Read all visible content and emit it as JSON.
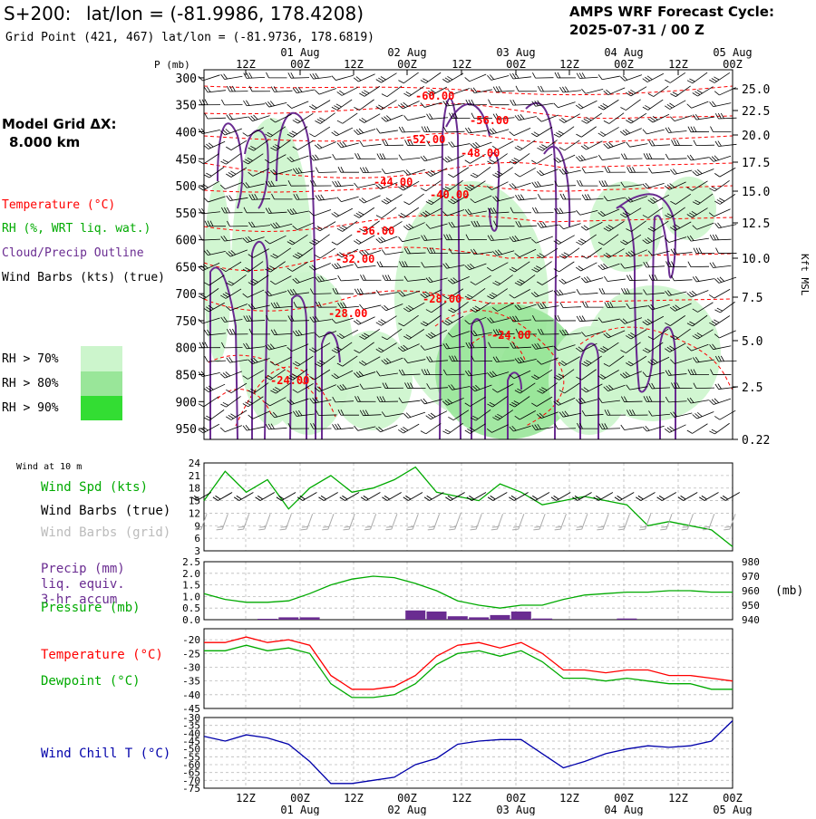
{
  "header": {
    "station": "S+200:",
    "station_coords": "lat/lon = (-81.9986, 178.4208)",
    "grid_point": "Grid Point (421, 467) lat/lon = (-81.9736, 178.6819)",
    "model_title": "AMPS WRF Forecast Cycle:",
    "cycle": "2025-07-31 / 00  Z"
  },
  "left_panel": {
    "grid_label": "Model Grid ΔX:",
    "grid_value": "8.000 km",
    "temperature_label": "Temperature (°C)",
    "rh_label": "RH (%, WRT liq. wat.)",
    "cloud_label": "Cloud/Precip Outline",
    "barb_label": "Wind Barbs (kts) (true)",
    "rh70": "RH > 70%",
    "rh80": "RH > 80%",
    "rh90": "RH > 90%"
  },
  "colors": {
    "temperature": "#ff0000",
    "rh": "#00aa00",
    "cloud": "#6a2c91",
    "rh70": "#ccf5cc",
    "rh80": "#99e699",
    "rh90": "#33dd33",
    "chill": "#0000aa",
    "pressure": "#00aa00",
    "precip": "#6a2c91"
  },
  "time_axis": {
    "hour_labels": [
      "12Z",
      "00Z",
      "12Z",
      "00Z",
      "12Z",
      "00Z",
      "12Z",
      "00Z",
      "12Z",
      "00Z"
    ],
    "day_labels": [
      "01 Aug",
      "02 Aug",
      "03 Aug",
      "04 Aug",
      "05 Aug"
    ],
    "bottom_day_labels": [
      "01 Aug",
      "02 Aug",
      "03 Aug",
      "04 Aug",
      "05 Aug"
    ]
  },
  "chart_data": [
    {
      "type": "heatmap",
      "title": "Vertical cross-section",
      "ylabel": "P (mb)",
      "right_label": "Kft MSL",
      "pressure_ticks": [
        "300",
        "350",
        "400",
        "450",
        "500",
        "550",
        "600",
        "650",
        "700",
        "750",
        "800",
        "850",
        "900",
        "950"
      ],
      "kft_ticks": [
        "25.0",
        "22.5",
        "20.0",
        "17.5",
        "15.0",
        "12.5",
        "10.0",
        "7.5",
        "5.0",
        "2.5",
        "0.22"
      ],
      "temperature_labels": [
        "-60.00",
        "-56.00",
        "-52.00",
        "-48.00",
        "-44.00",
        "-40.00",
        "-36.00",
        "-32.00",
        "-28.00",
        "-28.00",
        "-24.00",
        "-24.00"
      ]
    },
    {
      "type": "line",
      "title": "Wind at 10 m",
      "labels": [
        "Wind Spd (kts)",
        "Wind Barbs (true)",
        "Wind Barbs (grid)"
      ],
      "yticks": [
        "24",
        "21",
        "18",
        "15",
        "12",
        "9",
        "6",
        "3"
      ],
      "ylim": [
        3,
        24
      ],
      "wind_speed": [
        15,
        22,
        17,
        20,
        13,
        18,
        21,
        17,
        18,
        20,
        23,
        17,
        16,
        15,
        19,
        17,
        14,
        15,
        16,
        15,
        14,
        9,
        10,
        9,
        8,
        4
      ]
    },
    {
      "type": "line",
      "title": "Precip / Pressure",
      "labels": [
        "Precip (mm)",
        "liq. equiv.",
        "3-hr accum",
        "Pressure (mb)"
      ],
      "yticks_left": [
        "2.5",
        "2.0",
        "1.5",
        "1.0",
        "0.5",
        "0.0"
      ],
      "yticks_right": [
        "980",
        "970",
        "960",
        "950",
        "940"
      ],
      "right_unit": "(mb)",
      "ylim_left": [
        0,
        2.5
      ],
      "ylim_right": [
        940,
        980
      ],
      "pressure": [
        958,
        954,
        952,
        952,
        953,
        958,
        964,
        968,
        970,
        969,
        965,
        960,
        953,
        950,
        948,
        950,
        950,
        954,
        957,
        958,
        959,
        959,
        960,
        960,
        959,
        959
      ],
      "precip": [
        0,
        0,
        0,
        0.04,
        0.1,
        0.1,
        0,
        0,
        0,
        0,
        0.4,
        0.35,
        0.15,
        0.1,
        0.2,
        0.35,
        0.05,
        0,
        0,
        0,
        0.05,
        0,
        0,
        0,
        0,
        0
      ]
    },
    {
      "type": "line",
      "title": "Temperature / Dewpoint",
      "labels": [
        "Temperature (°C)",
        "Dewpoint (°C)"
      ],
      "yticks": [
        "-20",
        "-25",
        "-30",
        "-35",
        "-40",
        "-45"
      ],
      "ylim": [
        -45,
        -16
      ],
      "temperature": [
        -21,
        -21,
        -19,
        -21,
        -20,
        -22,
        -33,
        -38,
        -38,
        -37,
        -33,
        -26,
        -22,
        -21,
        -23,
        -21,
        -25,
        -31,
        -31,
        -32,
        -31,
        -31,
        -33,
        -33,
        -34,
        -35
      ],
      "dewpoint": [
        -24,
        -24,
        -22,
        -24,
        -23,
        -25,
        -36,
        -41,
        -41,
        -40,
        -36,
        -29,
        -25,
        -24,
        -26,
        -24,
        -28,
        -34,
        -34,
        -35,
        -34,
        -35,
        -36,
        -36,
        -38,
        -38
      ]
    },
    {
      "type": "line",
      "title": "Wind Chill",
      "labels": [
        "Wind Chill T (°C)"
      ],
      "yticks": [
        "-30",
        "-35",
        "-40",
        "-45",
        "-50",
        "-55",
        "-60",
        "-65",
        "-70",
        "-75"
      ],
      "ylim": [
        -75,
        -30
      ],
      "wind_chill": [
        -42,
        -45,
        -41,
        -43,
        -47,
        -58,
        -72,
        -72,
        -70,
        -68,
        -60,
        -56,
        -47,
        -45,
        -44,
        -44,
        -53,
        -62,
        -58,
        -53,
        -50,
        -48,
        -49,
        -48,
        -45,
        -32
      ]
    }
  ]
}
